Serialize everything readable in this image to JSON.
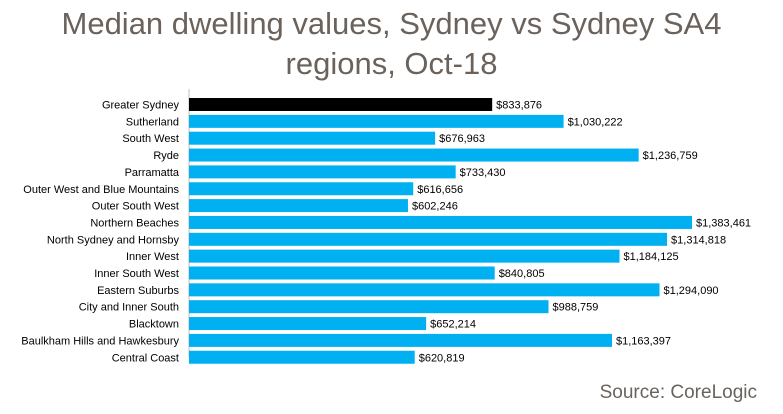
{
  "chart_data": {
    "type": "bar",
    "orientation": "horizontal",
    "title": "Median dwelling values, Sydney vs Sydney SA4\nregions, Oct-18",
    "source": "Source: CoreLogic",
    "categories": [
      "Greater Sydney",
      "Sutherland",
      "South West",
      "Ryde",
      "Parramatta",
      "Outer West and Blue Mountains",
      "Outer South West",
      "Northern Beaches",
      "North Sydney and Hornsby",
      "Inner West",
      "Inner South West",
      "Eastern Suburbs",
      "City and Inner South",
      "Blacktown",
      "Baulkham Hills and Hawkesbury",
      "Central Coast"
    ],
    "values": [
      833876,
      1030222,
      676963,
      1236759,
      733430,
      616656,
      602246,
      1383461,
      1314818,
      1184125,
      840805,
      1294090,
      988759,
      652214,
      1163397,
      620819
    ],
    "value_labels": [
      "$833,876",
      "$1,030,222",
      "$676,963",
      "$1,236,759",
      "$733,430",
      "$616,656",
      "$602,246",
      "$1,383,461",
      "$1,314,818",
      "$1,184,125",
      "$840,805",
      "$1,294,090",
      "$988,759",
      "$652,214",
      "$1,163,397",
      "$620,819"
    ],
    "highlight_color": "#000000",
    "bar_color": "#00b0f0",
    "grid": false,
    "legend": "none"
  }
}
